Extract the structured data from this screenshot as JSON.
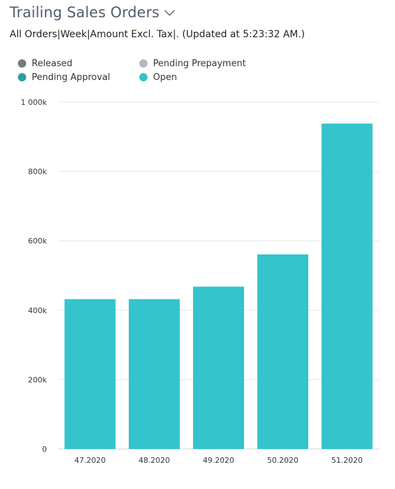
{
  "header": {
    "title": "Trailing Sales Orders",
    "subtitle": "All Orders|Week|Amount Excl. Tax|. (Updated at  5:23:32 AM.)"
  },
  "colors": {
    "released": "#727a85",
    "pending_prepayment": "#b5b9bf",
    "pending_approval": "#2e9ea3",
    "open": "#33c4cc",
    "grid": "#e6e6e6"
  },
  "legend": {
    "items": [
      {
        "label": "Released",
        "color": "#727a85"
      },
      {
        "label": "Pending Prepayment",
        "color": "#b5b9bf"
      },
      {
        "label": "Pending Approval",
        "color": "#2e9ea3"
      },
      {
        "label": "Open",
        "color": "#33c4cc"
      }
    ]
  },
  "chart_data": {
    "type": "bar",
    "categories": [
      "47.2020",
      "48.2020",
      "49.2020",
      "50.2020",
      "51.2020"
    ],
    "series": [
      {
        "name": "Released",
        "values": [
          0,
          0,
          0,
          0,
          0
        ]
      },
      {
        "name": "Pending Prepayment",
        "values": [
          0,
          0,
          0,
          0,
          0
        ]
      },
      {
        "name": "Pending Approval",
        "values": [
          0,
          0,
          0,
          0,
          0
        ]
      },
      {
        "name": "Open",
        "values": [
          432000,
          432000,
          468000,
          561000,
          938000
        ]
      }
    ],
    "stacked": true,
    "title": "",
    "xlabel": "",
    "ylabel": "",
    "ylim": [
      0,
      1000000
    ],
    "yticks": [
      0,
      200000,
      400000,
      600000,
      800000,
      1000000
    ],
    "ytick_labels": [
      "0",
      "200k",
      "400k",
      "600k",
      "800k",
      "1 000k"
    ],
    "grid": true,
    "legend_position": "top-left"
  }
}
